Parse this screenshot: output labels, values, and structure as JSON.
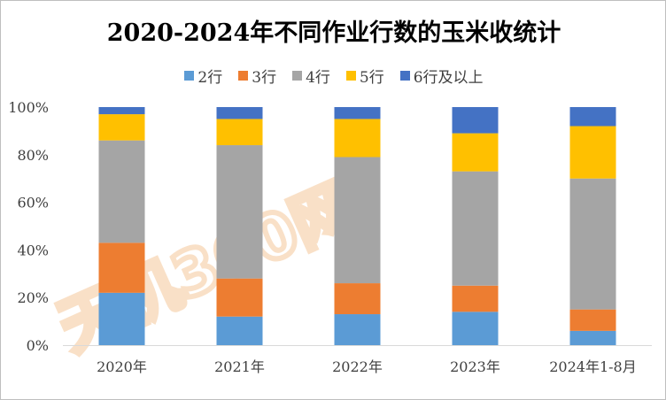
{
  "title": "2020-2024年不同作业行数的玉米收统计",
  "watermark_text": "天机360网",
  "chart_data": {
    "type": "bar",
    "stacked": true,
    "title": "2020-2024年不同作业行数的玉米收统计",
    "xlabel": "",
    "ylabel": "",
    "ylim": [
      0,
      100
    ],
    "y_ticks": [
      "0%",
      "20%",
      "40%",
      "60%",
      "80%",
      "100%"
    ],
    "categories": [
      "2020年",
      "2021年",
      "2022年",
      "2023年",
      "2024年1-8月"
    ],
    "legend_position": "top",
    "grid": false,
    "series": [
      {
        "name": "2行",
        "color": "#5b9bd5",
        "values": [
          22,
          12,
          13,
          14,
          6
        ]
      },
      {
        "name": "3行",
        "color": "#ed7d31",
        "values": [
          21,
          16,
          13,
          11,
          9
        ]
      },
      {
        "name": "4行",
        "color": "#a5a5a5",
        "values": [
          43,
          56,
          53,
          48,
          55
        ]
      },
      {
        "name": "5行",
        "color": "#ffc000",
        "values": [
          11,
          11,
          16,
          16,
          22
        ]
      },
      {
        "name": "6行及以上",
        "color": "#4472c4",
        "values": [
          3,
          5,
          5,
          11,
          8
        ]
      }
    ]
  }
}
